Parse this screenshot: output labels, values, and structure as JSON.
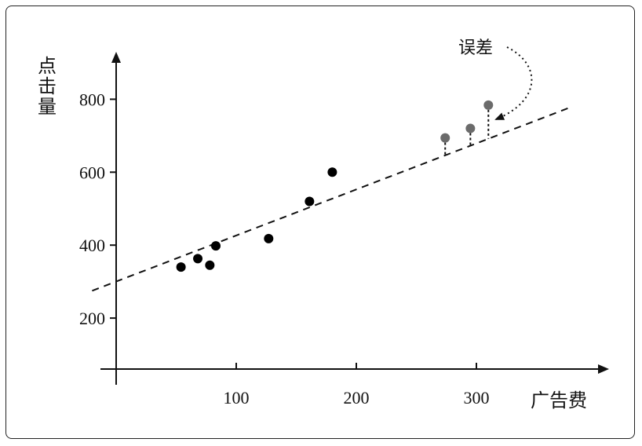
{
  "chart_data": {
    "type": "scatter",
    "xlabel": "广告费",
    "ylabel": "点击量",
    "xlim": [
      0,
      410
    ],
    "ylim": [
      0,
      900
    ],
    "xticks": [
      100,
      200,
      300
    ],
    "yticks": [
      200,
      400,
      600,
      800
    ],
    "grid": false,
    "legend": "none",
    "annotation": "误差",
    "colors": {
      "points": "#000000",
      "error_points": "#6b6b6b",
      "line": "#111111"
    },
    "trend_line": {
      "style": "dashed",
      "x": [
        -20,
        380
      ],
      "y": [
        275,
        780
      ]
    },
    "series": [
      {
        "points": [
          {
            "x": 54,
            "y": 340
          },
          {
            "x": 68,
            "y": 363
          },
          {
            "x": 78,
            "y": 345
          },
          {
            "x": 83,
            "y": 398
          },
          {
            "x": 127,
            "y": 418
          },
          {
            "x": 161,
            "y": 520
          },
          {
            "x": 180,
            "y": 600
          }
        ]
      },
      {
        "points": [
          {
            "x": 274,
            "y": 694
          },
          {
            "x": 295,
            "y": 720
          },
          {
            "x": 310,
            "y": 784
          }
        ]
      }
    ]
  }
}
